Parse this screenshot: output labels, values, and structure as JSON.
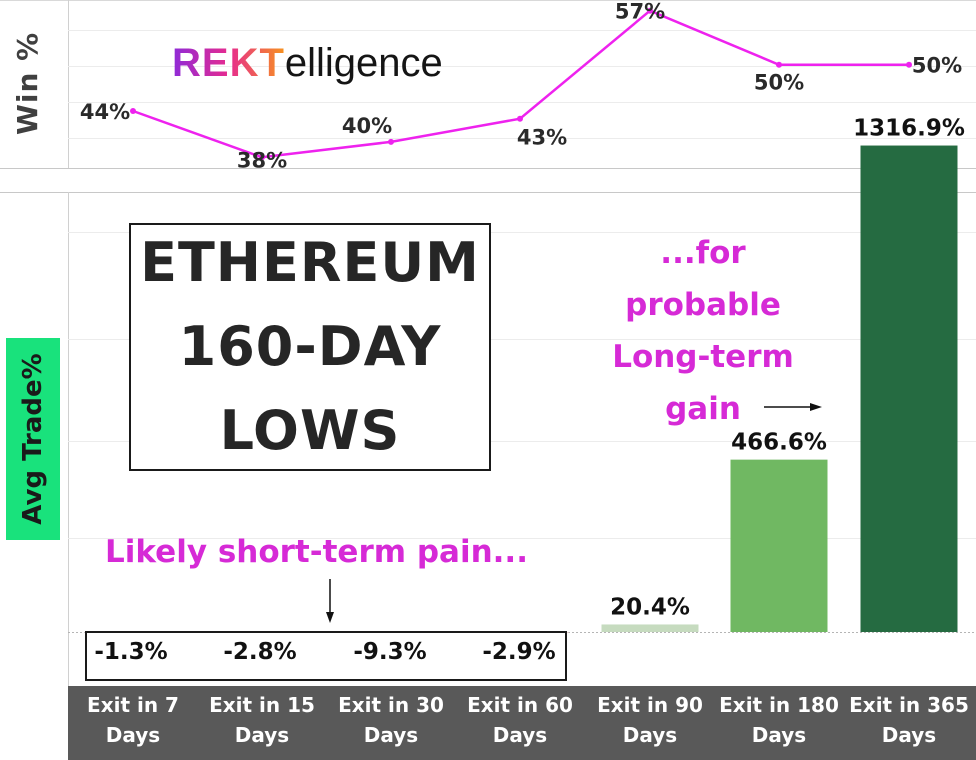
{
  "chart_data": [
    {
      "type": "line",
      "ylabel": "Win %",
      "categories": [
        "Exit in 7 Days",
        "Exit in 15 Days",
        "Exit in 30 Days",
        "Exit in 60 Days",
        "Exit in 90 Days",
        "Exit in 180 Days",
        "Exit in 365 Days"
      ],
      "values": [
        44,
        38,
        40,
        43,
        57,
        50,
        50
      ],
      "data_labels": [
        "44%",
        "38%",
        "40%",
        "43%",
        "57%",
        "50%",
        "50%"
      ],
      "color": "#ee22ee",
      "grid": true
    },
    {
      "type": "bar",
      "ylabel": "Avg Trade%",
      "categories": [
        "Exit in 7 Days",
        "Exit in 15 Days",
        "Exit in 30 Days",
        "Exit in 60 Days",
        "Exit in 90 Days",
        "Exit in 180 Days",
        "Exit in 365 Days"
      ],
      "values": [
        -1.3,
        -2.8,
        -9.3,
        -2.9,
        20.4,
        466.6,
        1316.9
      ],
      "data_labels": [
        "-1.3%",
        "-2.8%",
        "-9.3%",
        "-2.9%",
        "20.4%",
        "466.6%",
        "1316.9%"
      ],
      "bar_colors": [
        "#f2d5d5",
        "#f2d5d5",
        "#f2d5d5",
        "#f2d5d5",
        "#c6dbbf",
        "#70b862",
        "#256b41"
      ],
      "grid": true
    }
  ],
  "logo": {
    "part1": "REKT",
    "part2": "elligence"
  },
  "title": [
    "ETHEREUM",
    "160-DAY",
    "LOWS"
  ],
  "annotations": {
    "short_term": "Likely short-term pain...",
    "long_term": [
      "...for",
      "probable",
      "Long-term",
      "gain"
    ]
  },
  "x_categories": [
    [
      "Exit in 7",
      "Days"
    ],
    [
      "Exit in 15",
      "Days"
    ],
    [
      "Exit in 30",
      "Days"
    ],
    [
      "Exit in 60",
      "Days"
    ],
    [
      "Exit in 90",
      "Days"
    ],
    [
      "Exit in 180",
      "Days"
    ],
    [
      "Exit in 365",
      "Days"
    ]
  ],
  "colors": {
    "accent_text": "#d62ad6",
    "axis_bg": "#595959",
    "avg_label_bg": "#19e27c"
  }
}
